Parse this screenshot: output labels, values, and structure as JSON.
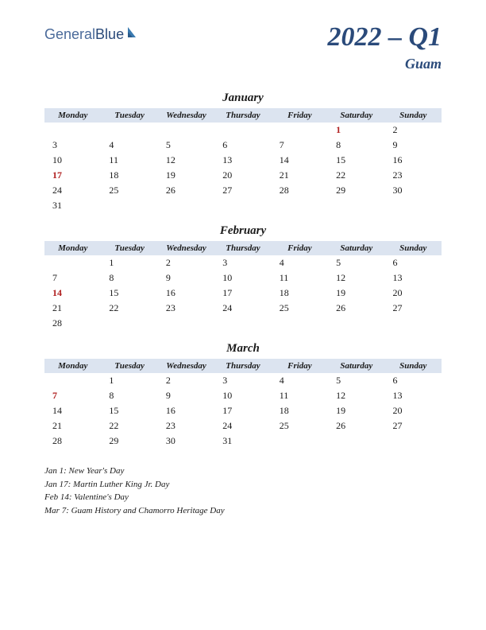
{
  "logo": {
    "part1": "General",
    "part2": "Blue"
  },
  "title": "2022 – Q1",
  "subtitle": "Guam",
  "weekdays": [
    "Monday",
    "Tuesday",
    "Wednesday",
    "Thursday",
    "Friday",
    "Saturday",
    "Sunday"
  ],
  "months": [
    {
      "name": "January",
      "weeks": [
        [
          null,
          null,
          null,
          null,
          null,
          {
            "d": "1",
            "h": true
          },
          {
            "d": "2"
          }
        ],
        [
          {
            "d": "3"
          },
          {
            "d": "4"
          },
          {
            "d": "5"
          },
          {
            "d": "6"
          },
          {
            "d": "7"
          },
          {
            "d": "8"
          },
          {
            "d": "9"
          }
        ],
        [
          {
            "d": "10"
          },
          {
            "d": "11"
          },
          {
            "d": "12"
          },
          {
            "d": "13"
          },
          {
            "d": "14"
          },
          {
            "d": "15"
          },
          {
            "d": "16"
          }
        ],
        [
          {
            "d": "17",
            "h": true
          },
          {
            "d": "18"
          },
          {
            "d": "19"
          },
          {
            "d": "20"
          },
          {
            "d": "21"
          },
          {
            "d": "22"
          },
          {
            "d": "23"
          }
        ],
        [
          {
            "d": "24"
          },
          {
            "d": "25"
          },
          {
            "d": "26"
          },
          {
            "d": "27"
          },
          {
            "d": "28"
          },
          {
            "d": "29"
          },
          {
            "d": "30"
          }
        ],
        [
          {
            "d": "31"
          },
          null,
          null,
          null,
          null,
          null,
          null
        ]
      ]
    },
    {
      "name": "February",
      "weeks": [
        [
          null,
          {
            "d": "1"
          },
          {
            "d": "2"
          },
          {
            "d": "3"
          },
          {
            "d": "4"
          },
          {
            "d": "5"
          },
          {
            "d": "6"
          }
        ],
        [
          {
            "d": "7"
          },
          {
            "d": "8"
          },
          {
            "d": "9"
          },
          {
            "d": "10"
          },
          {
            "d": "11"
          },
          {
            "d": "12"
          },
          {
            "d": "13"
          }
        ],
        [
          {
            "d": "14",
            "h": true
          },
          {
            "d": "15"
          },
          {
            "d": "16"
          },
          {
            "d": "17"
          },
          {
            "d": "18"
          },
          {
            "d": "19"
          },
          {
            "d": "20"
          }
        ],
        [
          {
            "d": "21"
          },
          {
            "d": "22"
          },
          {
            "d": "23"
          },
          {
            "d": "24"
          },
          {
            "d": "25"
          },
          {
            "d": "26"
          },
          {
            "d": "27"
          }
        ],
        [
          {
            "d": "28"
          },
          null,
          null,
          null,
          null,
          null,
          null
        ]
      ]
    },
    {
      "name": "March",
      "weeks": [
        [
          null,
          {
            "d": "1"
          },
          {
            "d": "2"
          },
          {
            "d": "3"
          },
          {
            "d": "4"
          },
          {
            "d": "5"
          },
          {
            "d": "6"
          }
        ],
        [
          {
            "d": "7",
            "h": true
          },
          {
            "d": "8"
          },
          {
            "d": "9"
          },
          {
            "d": "10"
          },
          {
            "d": "11"
          },
          {
            "d": "12"
          },
          {
            "d": "13"
          }
        ],
        [
          {
            "d": "14"
          },
          {
            "d": "15"
          },
          {
            "d": "16"
          },
          {
            "d": "17"
          },
          {
            "d": "18"
          },
          {
            "d": "19"
          },
          {
            "d": "20"
          }
        ],
        [
          {
            "d": "21"
          },
          {
            "d": "22"
          },
          {
            "d": "23"
          },
          {
            "d": "24"
          },
          {
            "d": "25"
          },
          {
            "d": "26"
          },
          {
            "d": "27"
          }
        ],
        [
          {
            "d": "28"
          },
          {
            "d": "29"
          },
          {
            "d": "30"
          },
          {
            "d": "31"
          },
          null,
          null,
          null
        ]
      ]
    }
  ],
  "holidays": [
    "Jan 1: New Year's Day",
    "Jan 17: Martin Luther King Jr. Day",
    "Feb 14: Valentine's Day",
    "Mar 7: Guam History and Chamorro Heritage Day"
  ],
  "colors": {
    "header_bg": "#dce4f0",
    "title_color": "#2a4a7a",
    "holiday_color": "#b02020",
    "text_color": "#1a1a1a"
  }
}
